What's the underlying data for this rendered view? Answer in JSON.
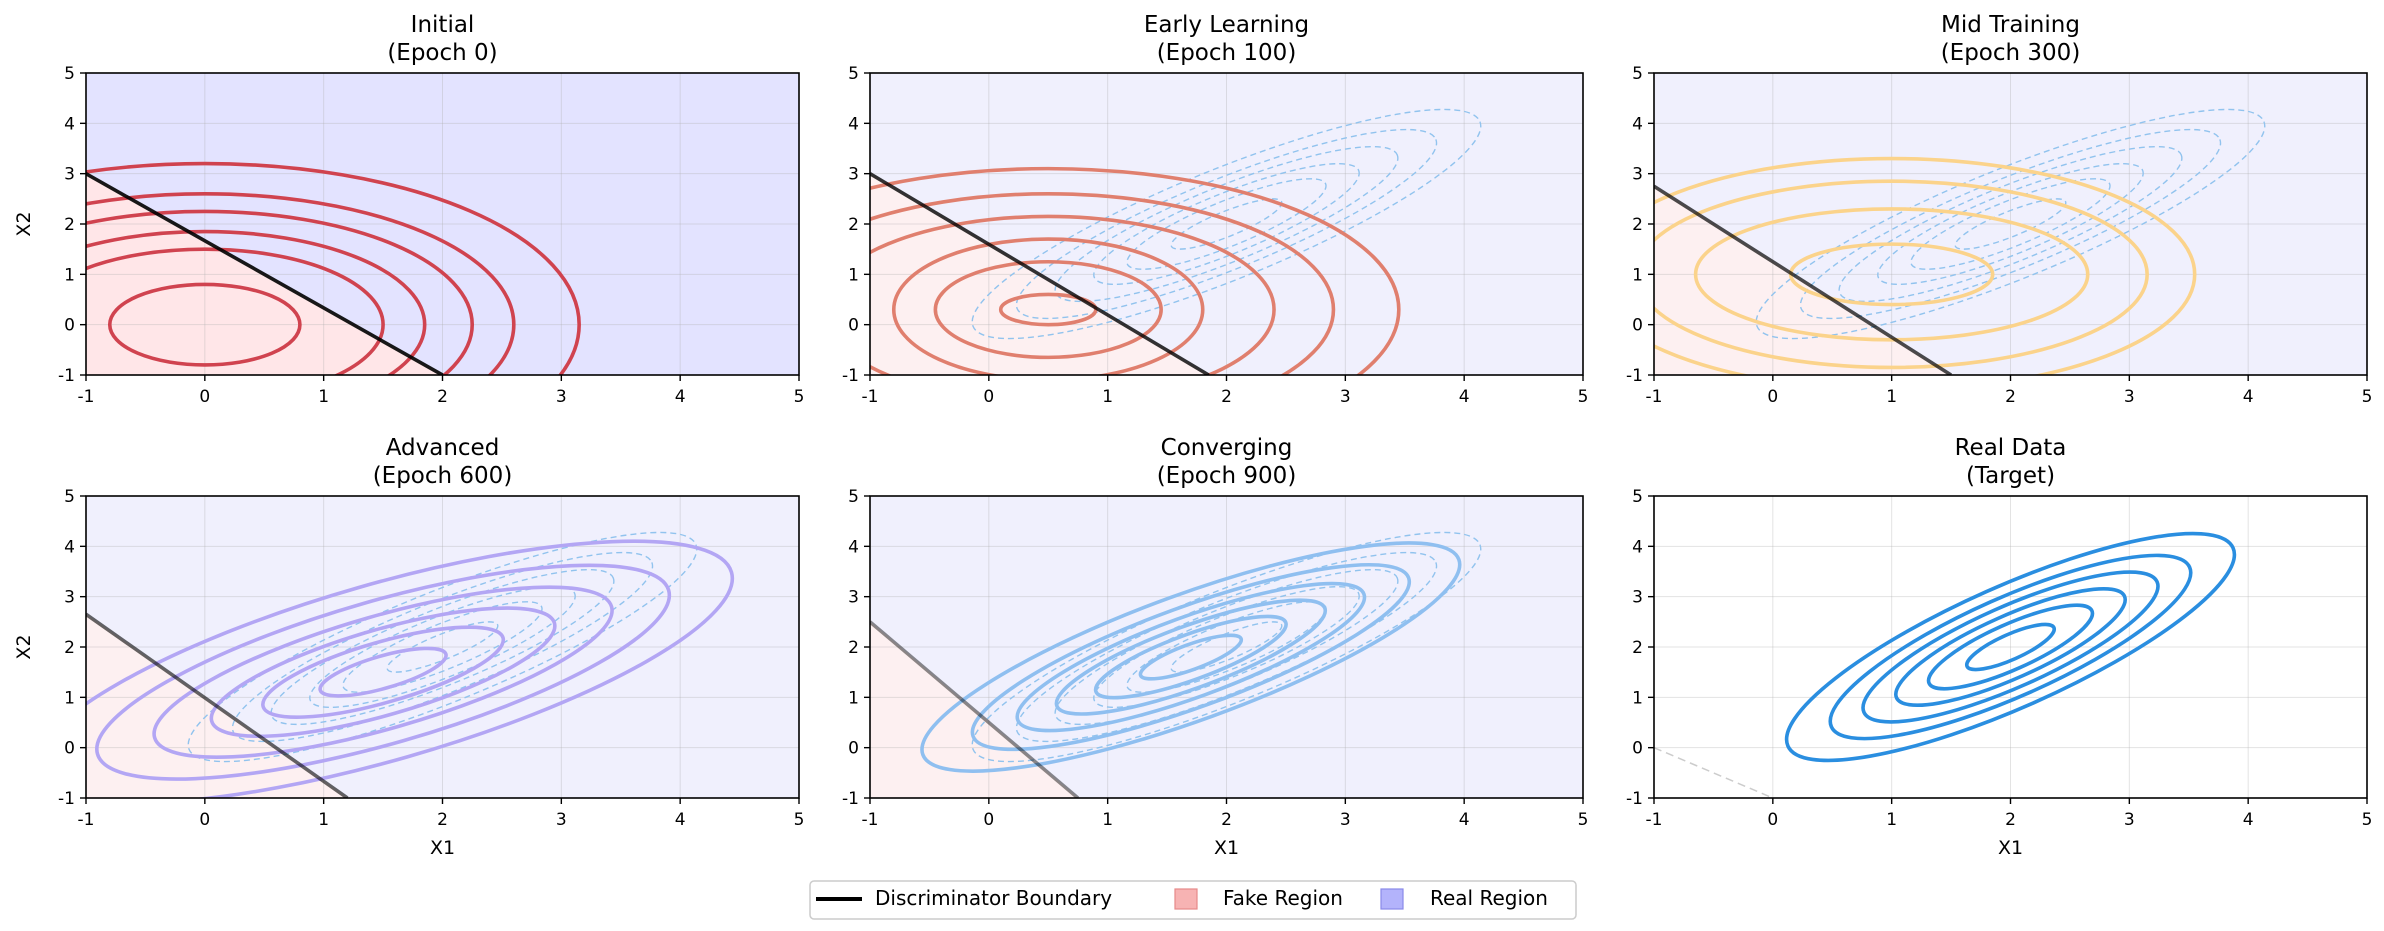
{
  "chart_data": [
    {
      "type": "contour",
      "title_line1": "Initial",
      "title_line2": "(Epoch 0)",
      "xlabel": "",
      "ylabel": "X2",
      "xlim": [
        -1,
        5
      ],
      "ylim": [
        -1,
        5
      ],
      "xticks": [
        "-1",
        "0",
        "1",
        "2",
        "3",
        "4",
        "5"
      ],
      "yticks": [
        "-1",
        "0",
        "1",
        "2",
        "3",
        "4",
        "5"
      ],
      "grid": true,
      "fake_distribution": {
        "mean": [
          0,
          0
        ],
        "color": "#d0434f",
        "levels_rx": [
          0.8,
          1.5,
          1.85,
          2.25,
          2.6,
          3.15
        ],
        "levels_ry": [
          0.8,
          1.5,
          1.85,
          2.25,
          2.6,
          3.2
        ],
        "angle_deg": 0
      },
      "real_reference": null,
      "boundary": {
        "x": [
          -1,
          2
        ],
        "y": [
          3,
          -1
        ],
        "opacity": 0.9
      },
      "real_region_color": "#e3e3ff",
      "fake_region_color": "#ffe6e8"
    },
    {
      "type": "contour",
      "title_line1": "Early Learning",
      "title_line2": "(Epoch 100)",
      "xlabel": "",
      "ylabel": "",
      "xlim": [
        -1,
        5
      ],
      "ylim": [
        -1,
        5
      ],
      "xticks": [
        "-1",
        "0",
        "1",
        "2",
        "3",
        "4",
        "5"
      ],
      "yticks": [
        "-1",
        "0",
        "1",
        "2",
        "3",
        "4",
        "5"
      ],
      "grid": true,
      "fake_distribution": {
        "mean": [
          0.5,
          0.3
        ],
        "color": "#e07f6e",
        "levels_rx": [
          0.4,
          0.95,
          1.3,
          1.9,
          2.4,
          2.95
        ],
        "levels_ry": [
          0.3,
          0.95,
          1.4,
          1.85,
          2.3,
          2.8
        ],
        "angle_deg": 0
      },
      "real_reference": {
        "mean": [
          2,
          2
        ],
        "color": "#91c3ee",
        "levels_rx": [
          0.5,
          0.9,
          1.2,
          1.55,
          1.9,
          2.3
        ],
        "levels_ry": [
          0.25,
          0.45,
          0.6,
          0.75,
          0.9,
          1.1
        ],
        "angle_deg": 22
      },
      "boundary": {
        "x": [
          -1,
          1.85
        ],
        "y": [
          3,
          -1
        ],
        "opacity": 0.8
      },
      "real_region_color": "#f0f0fd",
      "fake_region_color": "#fdf0f1"
    },
    {
      "type": "contour",
      "title_line1": "Mid Training",
      "title_line2": "(Epoch 300)",
      "xlabel": "",
      "ylabel": "",
      "xlim": [
        -1,
        5
      ],
      "ylim": [
        -1,
        5
      ],
      "xticks": [
        "-1",
        "0",
        "1",
        "2",
        "3",
        "4",
        "5"
      ],
      "yticks": [
        "-1",
        "0",
        "1",
        "2",
        "3",
        "4",
        "5"
      ],
      "grid": true,
      "fake_distribution": {
        "mean": [
          1,
          1
        ],
        "color": "#fbd38b",
        "levels_rx": [
          0.85,
          1.65,
          2.15,
          2.55
        ],
        "levels_ry": [
          0.6,
          1.3,
          1.85,
          2.3
        ],
        "angle_deg": 0
      },
      "real_reference": {
        "mean": [
          2,
          2
        ],
        "color": "#91c3ee",
        "levels_rx": [
          0.5,
          0.9,
          1.2,
          1.55,
          1.9,
          2.3
        ],
        "levels_ry": [
          0.25,
          0.45,
          0.6,
          0.75,
          0.9,
          1.1
        ],
        "angle_deg": 22
      },
      "boundary": {
        "x": [
          -1,
          1.5
        ],
        "y": [
          2.75,
          -1
        ],
        "opacity": 0.7
      },
      "real_region_color": "#f0f0fd",
      "fake_region_color": "#fdf0f1"
    },
    {
      "type": "contour",
      "title_line1": "Advanced",
      "title_line2": "(Epoch 600)",
      "xlabel": "X1",
      "ylabel": "X2",
      "xlim": [
        -1,
        5
      ],
      "ylim": [
        -1,
        5
      ],
      "xticks": [
        "-1",
        "0",
        "1",
        "2",
        "3",
        "4",
        "5"
      ],
      "yticks": [
        "-1",
        "0",
        "1",
        "2",
        "3",
        "4",
        "5"
      ],
      "grid": true,
      "fake_distribution": {
        "mean": [
          1.5,
          1.5
        ],
        "color": "#b3a6f4",
        "levels_rx": [
          0.55,
          1.05,
          1.5,
          2.0,
          2.5,
          3.05
        ],
        "levels_ry": [
          0.32,
          0.6,
          0.85,
          1.12,
          1.42,
          1.75
        ],
        "angle_deg": 16
      },
      "real_reference": {
        "mean": [
          2,
          2
        ],
        "color": "#91c3ee",
        "levels_rx": [
          0.5,
          0.9,
          1.2,
          1.55,
          1.9,
          2.3
        ],
        "levels_ry": [
          0.25,
          0.45,
          0.6,
          0.75,
          0.9,
          1.1
        ],
        "angle_deg": 22
      },
      "boundary": {
        "x": [
          -1,
          1.2
        ],
        "y": [
          2.65,
          -1
        ],
        "opacity": 0.6
      },
      "real_region_color": "#f0f0fd",
      "fake_region_color": "#fdf0f1"
    },
    {
      "type": "contour",
      "title_line1": "Converging",
      "title_line2": "(Epoch 900)",
      "xlabel": "X1",
      "ylabel": "",
      "xlim": [
        -1,
        5
      ],
      "ylim": [
        -1,
        5
      ],
      "xticks": [
        "-1",
        "0",
        "1",
        "2",
        "3",
        "4",
        "5"
      ],
      "yticks": [
        "-1",
        "0",
        "1",
        "2",
        "3",
        "4",
        "5"
      ],
      "grid": true,
      "fake_distribution": {
        "mean": [
          1.7,
          1.8
        ],
        "color": "#8fbff0",
        "levels_rx": [
          0.45,
          0.85,
          1.2,
          1.55,
          1.95,
          2.4
        ],
        "levels_ry": [
          0.25,
          0.45,
          0.62,
          0.8,
          1.0,
          1.25
        ],
        "angle_deg": 20
      },
      "real_reference": {
        "mean": [
          2,
          2
        ],
        "color": "#91c3ee",
        "levels_rx": [
          0.5,
          0.9,
          1.2,
          1.55,
          1.9,
          2.3
        ],
        "levels_ry": [
          0.25,
          0.45,
          0.6,
          0.75,
          0.9,
          1.1
        ],
        "angle_deg": 22
      },
      "boundary": {
        "x": [
          -1,
          0.75
        ],
        "y": [
          2.5,
          -1
        ],
        "opacity": 0.45
      },
      "real_region_color": "#f0f0fd",
      "fake_region_color": "#fdf0f1"
    },
    {
      "type": "contour",
      "title_line1": "Real Data",
      "title_line2": "(Target)",
      "xlabel": "X1",
      "ylabel": "",
      "xlim": [
        -1,
        5
      ],
      "ylim": [
        -1,
        5
      ],
      "xticks": [
        "-1",
        "0",
        "1",
        "2",
        "3",
        "4",
        "5"
      ],
      "yticks": [
        "-1",
        "0",
        "1",
        "2",
        "3",
        "4",
        "5"
      ],
      "grid": true,
      "real_distribution": {
        "mean": [
          2,
          2
        ],
        "color": "#2a8ee0",
        "levels_rx": [
          0.4,
          0.75,
          1.05,
          1.35,
          1.65,
          2.05
        ],
        "levels_ry": [
          0.25,
          0.45,
          0.62,
          0.8,
          0.98,
          1.2
        ],
        "angle_deg": 24
      },
      "boundary": {
        "x": [
          -1,
          0
        ],
        "y": [
          0,
          -1
        ],
        "opacity": 0.2,
        "dashed": true
      },
      "real_region_color": "#ffffff",
      "fake_region_color": "#ffffff"
    }
  ],
  "legend": {
    "placement": "bottom-center",
    "items": [
      {
        "label": "Discriminator Boundary",
        "kind": "line",
        "color": "#000000"
      },
      {
        "label": "Fake Region",
        "kind": "patch",
        "color": "#f7b3b3"
      },
      {
        "label": "Real Region",
        "kind": "patch",
        "color": "#b3b3fb"
      }
    ]
  }
}
